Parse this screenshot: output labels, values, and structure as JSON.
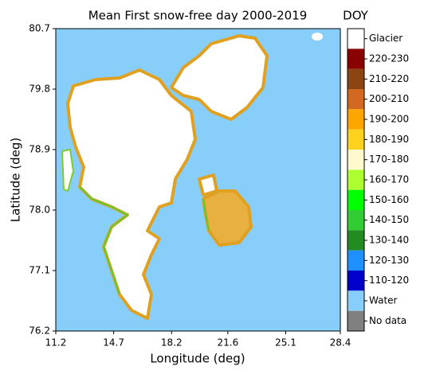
{
  "chart_data": {
    "type": "map",
    "title": "Mean First snow-free day 2000-2019",
    "x_label": "Longitude (deg)",
    "y_label": "Latitude (deg)",
    "xlim": [
      11.2,
      28.4
    ],
    "ylim": [
      76.2,
      80.7
    ],
    "xticks": [
      11.2,
      14.7,
      18.2,
      21.6,
      25.1,
      28.4
    ],
    "yticks": [
      76.2,
      77.1,
      {
        "value": 78,
        "label": "78.0"
      },
      78.9,
      79.8,
      80.7
    ],
    "legend_title": "DOY",
    "classes": [
      {
        "label": "Glacier",
        "color": "#ffffff"
      },
      {
        "label": "220-230",
        "color": "#8b0000"
      },
      {
        "label": "210-220",
        "color": "#8b4513"
      },
      {
        "label": "200-210",
        "color": "#d2691e"
      },
      {
        "label": "190-200",
        "color": "#ffa500"
      },
      {
        "label": "180-190",
        "color": "#ffd21e"
      },
      {
        "label": "170-180",
        "color": "#fffacd"
      },
      {
        "label": "160-170",
        "color": "#adff2f"
      },
      {
        "label": "150-160",
        "color": "#00ff00"
      },
      {
        "label": "140-150",
        "color": "#32cd32"
      },
      {
        "label": "130-140",
        "color": "#228b22"
      },
      {
        "label": "120-130",
        "color": "#1e90ff"
      },
      {
        "label": "110-120",
        "color": "#0000cd"
      },
      {
        "label": "Water",
        "color": "#87cefa"
      },
      {
        "label": "No data",
        "color": "#808080"
      }
    ]
  }
}
